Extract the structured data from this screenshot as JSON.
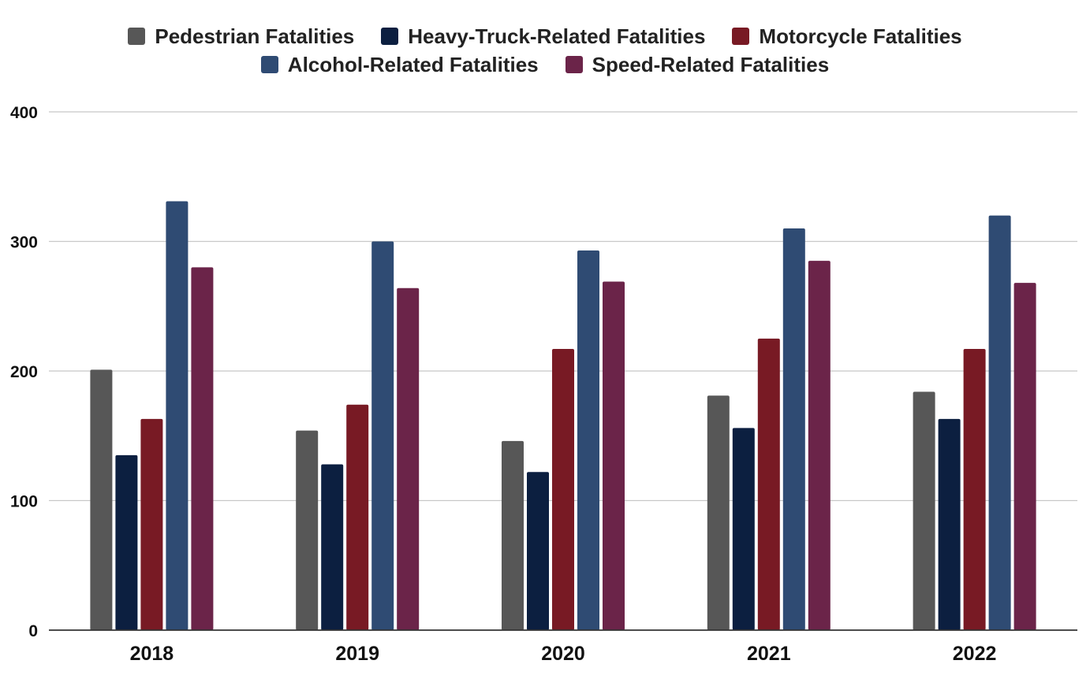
{
  "chart_data": {
    "type": "bar",
    "title": "",
    "xlabel": "",
    "ylabel": "",
    "categories": [
      "2018",
      "2019",
      "2020",
      "2021",
      "2022"
    ],
    "ylim": [
      0,
      400
    ],
    "yticks": [
      "0",
      "100",
      "200",
      "300",
      "400"
    ],
    "grid": true,
    "legend_position": "top",
    "series": [
      {
        "name": "Pedestrian Fatalities",
        "color": "#575757",
        "values": [
          201,
          154,
          146,
          181,
          184
        ]
      },
      {
        "name": "Heavy-Truck-Related Fatalities",
        "color": "#0c1f40",
        "values": [
          135,
          128,
          122,
          156,
          163
        ]
      },
      {
        "name": "Motorcycle Fatalities",
        "color": "#781a24",
        "values": [
          163,
          174,
          217,
          225,
          217
        ]
      },
      {
        "name": "Alcohol-Related Fatalities",
        "color": "#2f4b73",
        "values": [
          331,
          300,
          293,
          310,
          320
        ]
      },
      {
        "name": "Speed-Related Fatalities",
        "color": "#6b2449",
        "values": [
          280,
          264,
          269,
          285,
          268
        ]
      }
    ]
  }
}
